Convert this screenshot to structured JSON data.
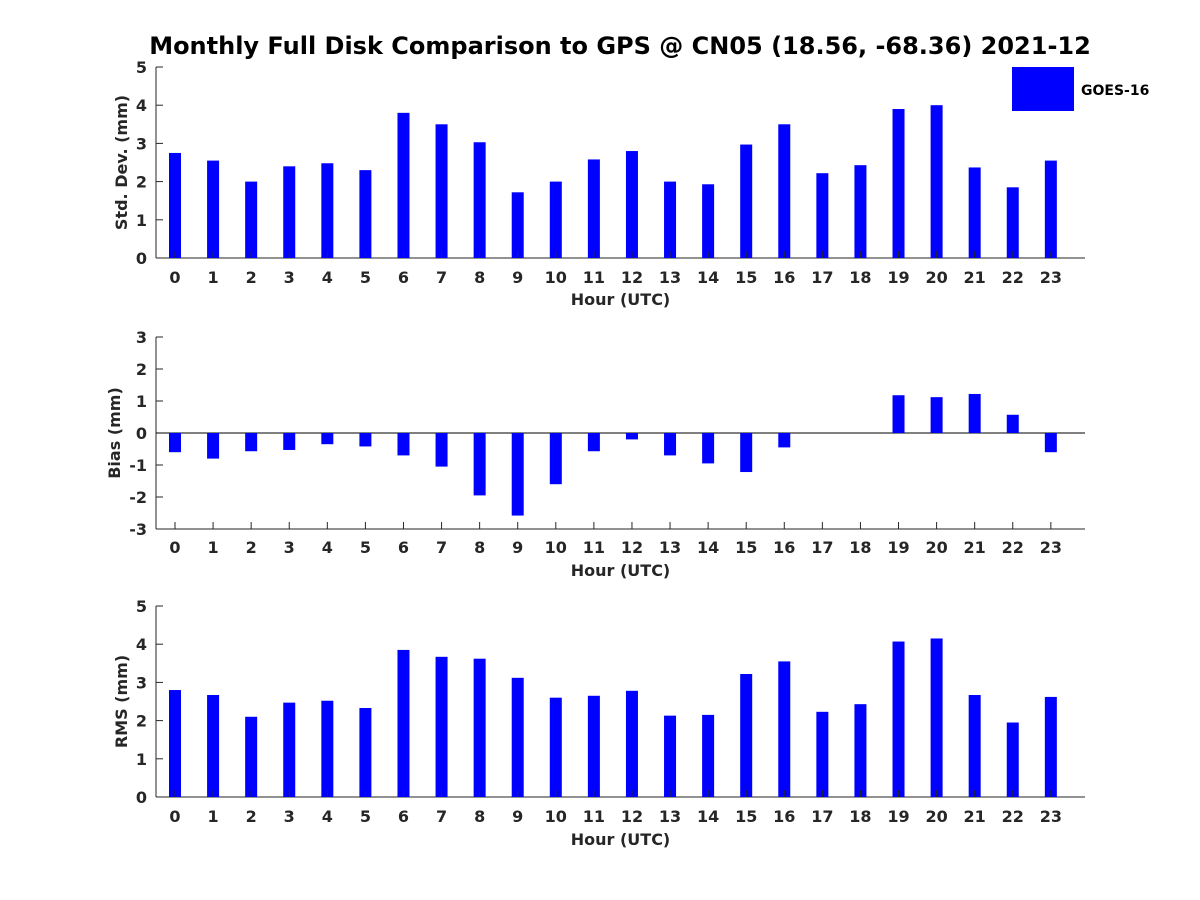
{
  "chart_data": {
    "type": "bar",
    "title": "Monthly Full Disk Comparison to GPS @ CN05 (18.56, -68.36) 2021-12",
    "legend": {
      "label": "GOES-16",
      "color": "#0000ff",
      "placement": "top-right"
    },
    "bar_color": "#0000ff",
    "categories": [
      "0",
      "1",
      "2",
      "3",
      "4",
      "5",
      "6",
      "7",
      "8",
      "9",
      "10",
      "11",
      "12",
      "13",
      "14",
      "15",
      "16",
      "17",
      "18",
      "19",
      "20",
      "21",
      "22",
      "23"
    ],
    "panels": [
      {
        "id": "std",
        "ylabel": "Std. Dev. (mm)",
        "xlabel": "Hour (UTC)",
        "ylim": [
          0,
          5
        ],
        "yticks": [
          0,
          1,
          2,
          3,
          4,
          5
        ],
        "values": [
          2.75,
          2.55,
          2.0,
          2.4,
          2.48,
          2.3,
          3.8,
          3.5,
          3.03,
          1.72,
          2.0,
          2.58,
          2.8,
          2.0,
          1.93,
          2.97,
          3.5,
          2.22,
          2.43,
          3.9,
          4.0,
          2.37,
          1.85,
          2.55
        ]
      },
      {
        "id": "bias",
        "ylabel": "Bias (mm)",
        "xlabel": "Hour (UTC)",
        "ylim": [
          -3,
          3
        ],
        "yticks": [
          -3,
          -2,
          -1,
          0,
          1,
          2,
          3
        ],
        "zero_line": true,
        "values": [
          -0.6,
          -0.8,
          -0.57,
          -0.53,
          -0.35,
          -0.42,
          -0.7,
          -1.05,
          -1.95,
          -2.58,
          -1.6,
          -0.57,
          -0.2,
          -0.7,
          -0.95,
          -1.22,
          -0.45,
          0.0,
          0.0,
          1.18,
          1.12,
          1.22,
          0.57,
          -0.6
        ]
      },
      {
        "id": "rms",
        "ylabel": "RMS (mm)",
        "xlabel": "Hour (UTC)",
        "ylim": [
          0,
          5
        ],
        "yticks": [
          0,
          1,
          2,
          3,
          4,
          5
        ],
        "values": [
          2.8,
          2.67,
          2.1,
          2.47,
          2.52,
          2.33,
          3.85,
          3.67,
          3.62,
          3.12,
          2.6,
          2.65,
          2.78,
          2.13,
          2.15,
          3.22,
          3.55,
          2.23,
          2.43,
          4.07,
          4.15,
          2.67,
          1.95,
          2.62
        ]
      }
    ]
  }
}
